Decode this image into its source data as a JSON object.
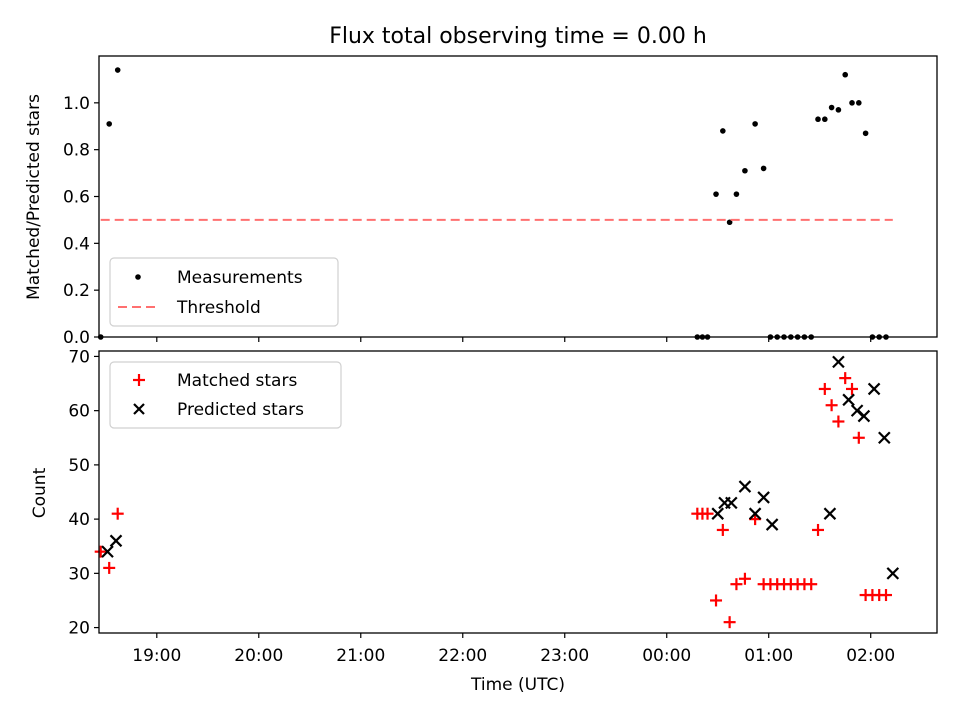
{
  "figure": {
    "title": "Flux total observing time = 0.00 h"
  },
  "chart_data": [
    {
      "type": "scatter",
      "ylabel": "Matched/Predicted stars",
      "ylim": [
        0,
        1.2
      ],
      "xlim": [
        "18:26",
        "02:39"
      ],
      "yticks": [
        0.0,
        0.2,
        0.4,
        0.6,
        0.8,
        1.0
      ],
      "ytick_labels": [
        "0.0",
        "0.2",
        "0.4",
        "0.6",
        "0.8",
        "1.0"
      ],
      "legend": {
        "placement": "lower-left",
        "entries": [
          "Measurements",
          "Threshold"
        ]
      },
      "series": [
        {
          "name": "Measurements",
          "marker": "dot",
          "color": "#000000",
          "x": [
            "18:27",
            "18:32",
            "18:37",
            "00:18",
            "00:21",
            "00:24",
            "00:29",
            "00:33",
            "00:37",
            "00:41",
            "00:46",
            "00:52",
            "00:57",
            "01:01",
            "01:05",
            "01:09",
            "01:13",
            "01:17",
            "01:21",
            "01:25",
            "01:29",
            "01:33",
            "01:37",
            "01:41",
            "01:45",
            "01:49",
            "01:53",
            "01:57",
            "02:01",
            "02:05",
            "02:09"
          ],
          "y": [
            0.0,
            0.91,
            1.14,
            0.0,
            0.0,
            0.0,
            0.61,
            0.88,
            0.49,
            0.61,
            0.71,
            0.91,
            0.72,
            0.0,
            0.0,
            0.0,
            0.0,
            0.0,
            0.0,
            0.0,
            0.93,
            0.93,
            0.98,
            0.97,
            1.12,
            1.0,
            1.0,
            0.87,
            0.0,
            0.0,
            0.0
          ]
        },
        {
          "name": "Threshold",
          "style": "dashed",
          "color": "#ff7070",
          "x": [
            "18:27",
            "02:13"
          ],
          "y": [
            0.5,
            0.5
          ]
        }
      ]
    },
    {
      "type": "scatter",
      "xlabel": "Time (UTC)",
      "ylabel": "Count",
      "ylim": [
        19,
        71
      ],
      "xlim": [
        "18:26",
        "02:39"
      ],
      "yticks": [
        20,
        30,
        40,
        50,
        60,
        70
      ],
      "ytick_labels": [
        "20",
        "30",
        "40",
        "50",
        "60",
        "70"
      ],
      "xticks": [
        "19:00",
        "20:00",
        "21:00",
        "22:00",
        "23:00",
        "00:00",
        "01:00",
        "02:00"
      ],
      "legend": {
        "placement": "upper-left",
        "entries": [
          "Matched stars",
          "Predicted stars"
        ]
      },
      "series": [
        {
          "name": "Matched stars",
          "marker": "plus",
          "color": "#ff0000",
          "x": [
            "18:27",
            "18:32",
            "18:37",
            "00:18",
            "00:21",
            "00:24",
            "00:29",
            "00:33",
            "00:37",
            "00:41",
            "00:46",
            "00:52",
            "00:57",
            "01:01",
            "01:05",
            "01:09",
            "01:13",
            "01:17",
            "01:21",
            "01:25",
            "01:29",
            "01:33",
            "01:37",
            "01:41",
            "01:45",
            "01:49",
            "01:53",
            "01:57",
            "02:01",
            "02:05",
            "02:09"
          ],
          "y": [
            34,
            31,
            41,
            41,
            41,
            41,
            25,
            38,
            21,
            28,
            29,
            40,
            28,
            28,
            28,
            28,
            28,
            28,
            28,
            28,
            38,
            64,
            61,
            58,
            66,
            64,
            55,
            26,
            26,
            26,
            26
          ]
        },
        {
          "name": "Predicted stars",
          "marker": "x",
          "color": "#000000",
          "x": [
            "18:31",
            "18:36",
            "00:30",
            "00:34",
            "00:38",
            "00:46",
            "00:52",
            "00:57",
            "01:02",
            "01:36",
            "01:41",
            "01:47",
            "01:52",
            "01:56",
            "02:02",
            "02:08",
            "02:13"
          ],
          "y": [
            34,
            36,
            41,
            43,
            43,
            46,
            41,
            44,
            39,
            41,
            69,
            62,
            60,
            59,
            64,
            55,
            30
          ]
        }
      ]
    }
  ]
}
